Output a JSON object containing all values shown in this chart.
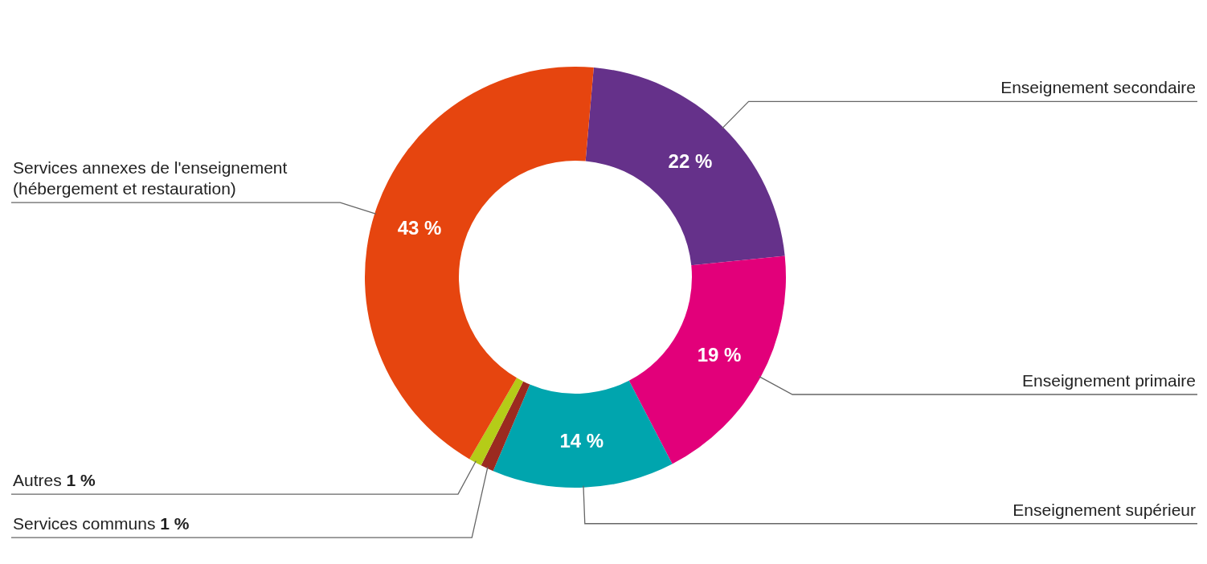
{
  "chart_data": {
    "type": "donut",
    "categories": [
      "Enseignement secondaire",
      "Enseignement primaire",
      "Enseignement supérieur",
      "Services communs",
      "Autres",
      "Services annexes de l'enseignement (hébergement et restauration)"
    ],
    "values": [
      22,
      19,
      14,
      1,
      1,
      43
    ],
    "value_labels": [
      "22 %",
      "19 %",
      "14 %",
      "1 %",
      "1 %",
      "43 %"
    ],
    "colors": [
      "#65318a",
      "#e2007a",
      "#00a5ae",
      "#9b2a20",
      "#b5cc18",
      "#e6450f"
    ]
  }
}
